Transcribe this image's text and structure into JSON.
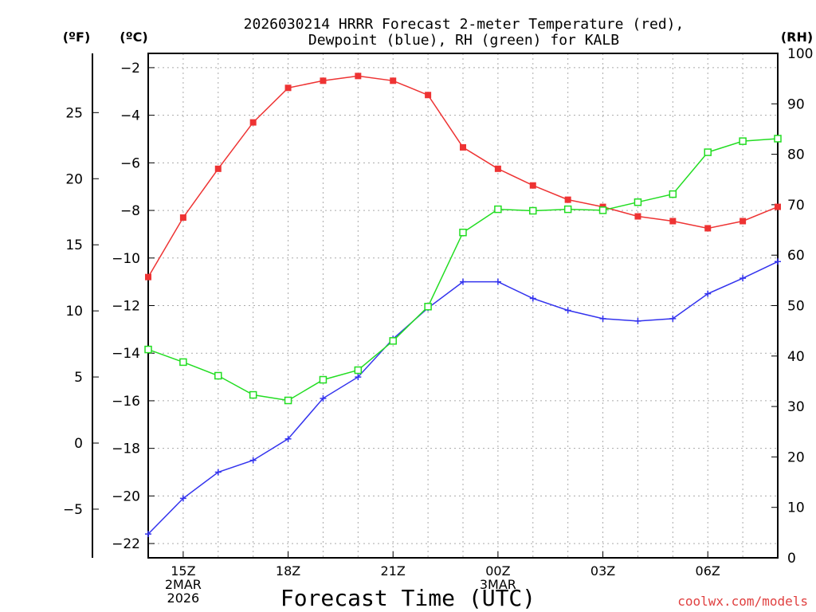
{
  "chart_data": {
    "type": "line",
    "title_line1": "2026030214 HRRR Forecast 2-meter Temperature (red),",
    "title_line2": "Dewpoint (blue), RH (green) for KALB",
    "unit_f": "(ºF)",
    "unit_c": "(ºC)",
    "unit_rh": "(RH)",
    "xlabel": "Forecast Time (UTC)",
    "credit": "coolwx.com/models",
    "x_hours": [
      14,
      15,
      16,
      17,
      18,
      19,
      20,
      21,
      22,
      23,
      24,
      25,
      26,
      27,
      28,
      29,
      30,
      31,
      32
    ],
    "xlim": [
      14,
      32
    ],
    "ylim_c": [
      -22.6,
      -1.4
    ],
    "ylim_rh": [
      0,
      100
    ],
    "x_ticks": [
      {
        "hour": 15,
        "lines": [
          "15Z",
          "2MAR",
          "2026"
        ]
      },
      {
        "hour": 18,
        "lines": [
          "18Z"
        ]
      },
      {
        "hour": 21,
        "lines": [
          "21Z"
        ]
      },
      {
        "hour": 24,
        "lines": [
          "00Z",
          "3MAR"
        ]
      },
      {
        "hour": 27,
        "lines": [
          "03Z"
        ]
      },
      {
        "hour": 30,
        "lines": [
          "06Z"
        ]
      }
    ],
    "y_ticks_c": [
      -2,
      -4,
      -6,
      -8,
      -10,
      -12,
      -14,
      -16,
      -18,
      -20,
      -22
    ],
    "y_tick_labels_c": [
      "−2",
      "−4",
      "−6",
      "−8",
      "−10",
      "−12",
      "−14",
      "−16",
      "−18",
      "−20",
      "−22"
    ],
    "y_ticks_f": [
      25,
      20,
      15,
      10,
      5,
      0,
      -5
    ],
    "y_tick_labels_f": [
      "25",
      "20",
      "15",
      "10",
      "5",
      "0",
      "−5"
    ],
    "y_ticks_rh": [
      0,
      10,
      20,
      30,
      40,
      50,
      60,
      70,
      80,
      90,
      100
    ],
    "y_tick_labels_rh": [
      "0",
      "10",
      "20",
      "30",
      "40",
      "50",
      "60",
      "70",
      "80",
      "90",
      "100"
    ],
    "series": [
      {
        "name": "Temperature",
        "axis": "C",
        "color": "#ee3333",
        "marker": "filled-square",
        "values": [
          -10.8,
          -8.3,
          -6.25,
          -4.3,
          -2.85,
          -2.55,
          -2.35,
          -2.55,
          -3.15,
          -5.35,
          -6.25,
          -6.95,
          -7.55,
          -7.85,
          -8.25,
          -8.45,
          -8.75,
          -8.45,
          -7.85
        ]
      },
      {
        "name": "Dewpoint",
        "axis": "C",
        "color": "#3333ee",
        "marker": "plus",
        "values": [
          -21.6,
          -20.1,
          -19.0,
          -18.5,
          -17.6,
          -15.9,
          -15.0,
          -13.4,
          -12.1,
          -11.0,
          -11.0,
          -11.7,
          -12.2,
          -12.55,
          -12.65,
          -12.55,
          -11.5,
          -10.85,
          -10.15
        ]
      },
      {
        "name": "RH",
        "axis": "RH",
        "color": "#22dd22",
        "marker": "open-square",
        "values": [
          41.3,
          38.8,
          36.1,
          32.3,
          31.2,
          35.3,
          37.2,
          43.0,
          49.8,
          64.5,
          69.1,
          68.8,
          69.1,
          68.9,
          70.5,
          72.1,
          80.4,
          82.6,
          83.1
        ]
      }
    ]
  }
}
